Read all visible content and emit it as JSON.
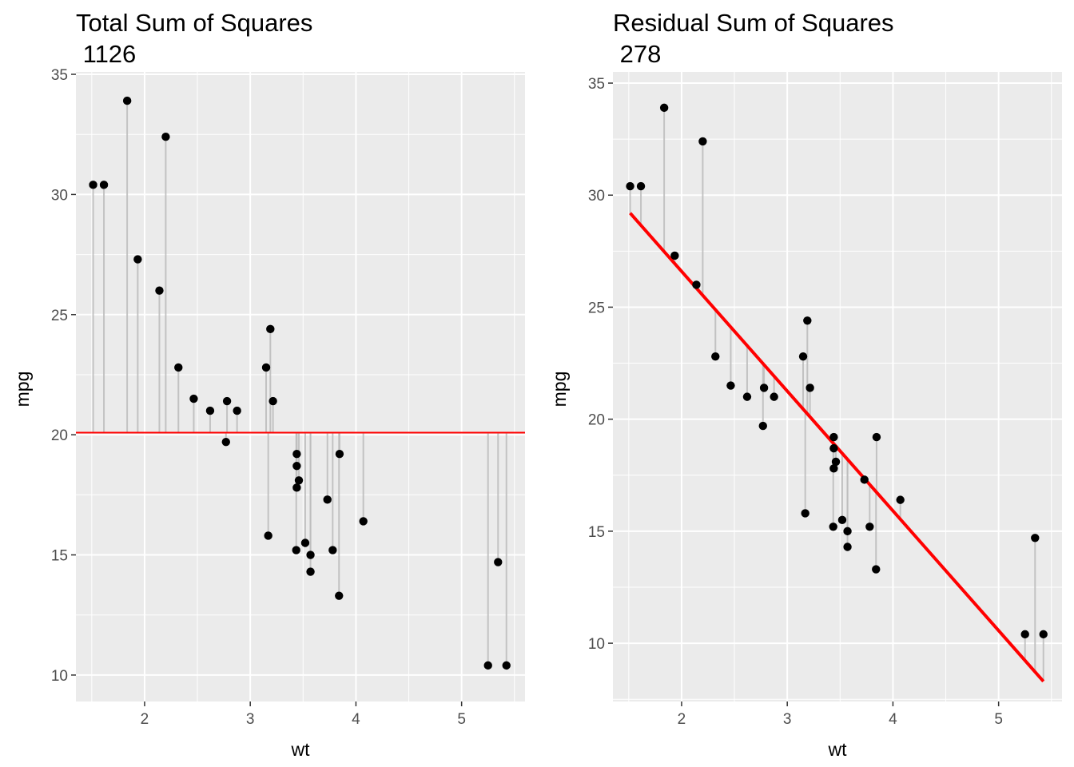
{
  "chart_data": [
    {
      "type": "scatter",
      "title": "Total Sum of Squares",
      "subtitle": "1126",
      "xlabel": "wt",
      "ylabel": "mpg",
      "xlim": [
        1.35,
        5.6
      ],
      "ylim": [
        8.9,
        35.1
      ],
      "xticks": [
        2,
        3,
        4,
        5
      ],
      "yticks": [
        10,
        15,
        20,
        25,
        30,
        35
      ],
      "grid": true,
      "reference": {
        "kind": "horizontal",
        "y": 20.09,
        "color": "#ff0000"
      },
      "segment_color": "#bebebe",
      "point_color": "#000000",
      "points": [
        {
          "x": 2.62,
          "y": 21.0
        },
        {
          "x": 2.875,
          "y": 21.0
        },
        {
          "x": 2.32,
          "y": 22.8
        },
        {
          "x": 3.215,
          "y": 21.4
        },
        {
          "x": 3.44,
          "y": 18.7
        },
        {
          "x": 3.46,
          "y": 18.1
        },
        {
          "x": 3.57,
          "y": 14.3
        },
        {
          "x": 3.19,
          "y": 24.4
        },
        {
          "x": 3.15,
          "y": 22.8
        },
        {
          "x": 3.44,
          "y": 19.2
        },
        {
          "x": 3.44,
          "y": 17.8
        },
        {
          "x": 4.07,
          "y": 16.4
        },
        {
          "x": 3.73,
          "y": 17.3
        },
        {
          "x": 3.78,
          "y": 15.2
        },
        {
          "x": 5.25,
          "y": 10.4
        },
        {
          "x": 5.424,
          "y": 10.4
        },
        {
          "x": 5.345,
          "y": 14.7
        },
        {
          "x": 2.2,
          "y": 32.4
        },
        {
          "x": 1.615,
          "y": 30.4
        },
        {
          "x": 1.835,
          "y": 33.9
        },
        {
          "x": 2.465,
          "y": 21.5
        },
        {
          "x": 3.52,
          "y": 15.5
        },
        {
          "x": 3.435,
          "y": 15.2
        },
        {
          "x": 3.84,
          "y": 13.3
        },
        {
          "x": 3.845,
          "y": 19.2
        },
        {
          "x": 1.935,
          "y": 27.3
        },
        {
          "x": 2.14,
          "y": 26.0
        },
        {
          "x": 1.513,
          "y": 30.4
        },
        {
          "x": 3.17,
          "y": 15.8
        },
        {
          "x": 2.77,
          "y": 19.7
        },
        {
          "x": 3.57,
          "y": 15.0
        },
        {
          "x": 2.78,
          "y": 21.4
        }
      ]
    },
    {
      "type": "scatter",
      "title": "Residual Sum of Squares",
      "subtitle": "278",
      "xlabel": "wt",
      "ylabel": "mpg",
      "xlim": [
        1.35,
        5.6
      ],
      "ylim": [
        7.4,
        35.5
      ],
      "xticks": [
        2,
        3,
        4,
        5
      ],
      "yticks": [
        10,
        15,
        20,
        25,
        30,
        35
      ],
      "grid": true,
      "reference": {
        "kind": "regression",
        "intercept": 37.285,
        "slope": -5.344,
        "color": "#ff0000"
      },
      "segment_color": "#bebebe",
      "point_color": "#000000",
      "points": [
        {
          "x": 2.62,
          "y": 21.0
        },
        {
          "x": 2.875,
          "y": 21.0
        },
        {
          "x": 2.32,
          "y": 22.8
        },
        {
          "x": 3.215,
          "y": 21.4
        },
        {
          "x": 3.44,
          "y": 18.7
        },
        {
          "x": 3.46,
          "y": 18.1
        },
        {
          "x": 3.57,
          "y": 14.3
        },
        {
          "x": 3.19,
          "y": 24.4
        },
        {
          "x": 3.15,
          "y": 22.8
        },
        {
          "x": 3.44,
          "y": 19.2
        },
        {
          "x": 3.44,
          "y": 17.8
        },
        {
          "x": 4.07,
          "y": 16.4
        },
        {
          "x": 3.73,
          "y": 17.3
        },
        {
          "x": 3.78,
          "y": 15.2
        },
        {
          "x": 5.25,
          "y": 10.4
        },
        {
          "x": 5.424,
          "y": 10.4
        },
        {
          "x": 5.345,
          "y": 14.7
        },
        {
          "x": 2.2,
          "y": 32.4
        },
        {
          "x": 1.615,
          "y": 30.4
        },
        {
          "x": 1.835,
          "y": 33.9
        },
        {
          "x": 2.465,
          "y": 21.5
        },
        {
          "x": 3.52,
          "y": 15.5
        },
        {
          "x": 3.435,
          "y": 15.2
        },
        {
          "x": 3.84,
          "y": 13.3
        },
        {
          "x": 3.845,
          "y": 19.2
        },
        {
          "x": 1.935,
          "y": 27.3
        },
        {
          "x": 2.14,
          "y": 26.0
        },
        {
          "x": 1.513,
          "y": 30.4
        },
        {
          "x": 3.17,
          "y": 15.8
        },
        {
          "x": 2.77,
          "y": 19.7
        },
        {
          "x": 3.57,
          "y": 15.0
        },
        {
          "x": 2.78,
          "y": 21.4
        }
      ]
    }
  ]
}
